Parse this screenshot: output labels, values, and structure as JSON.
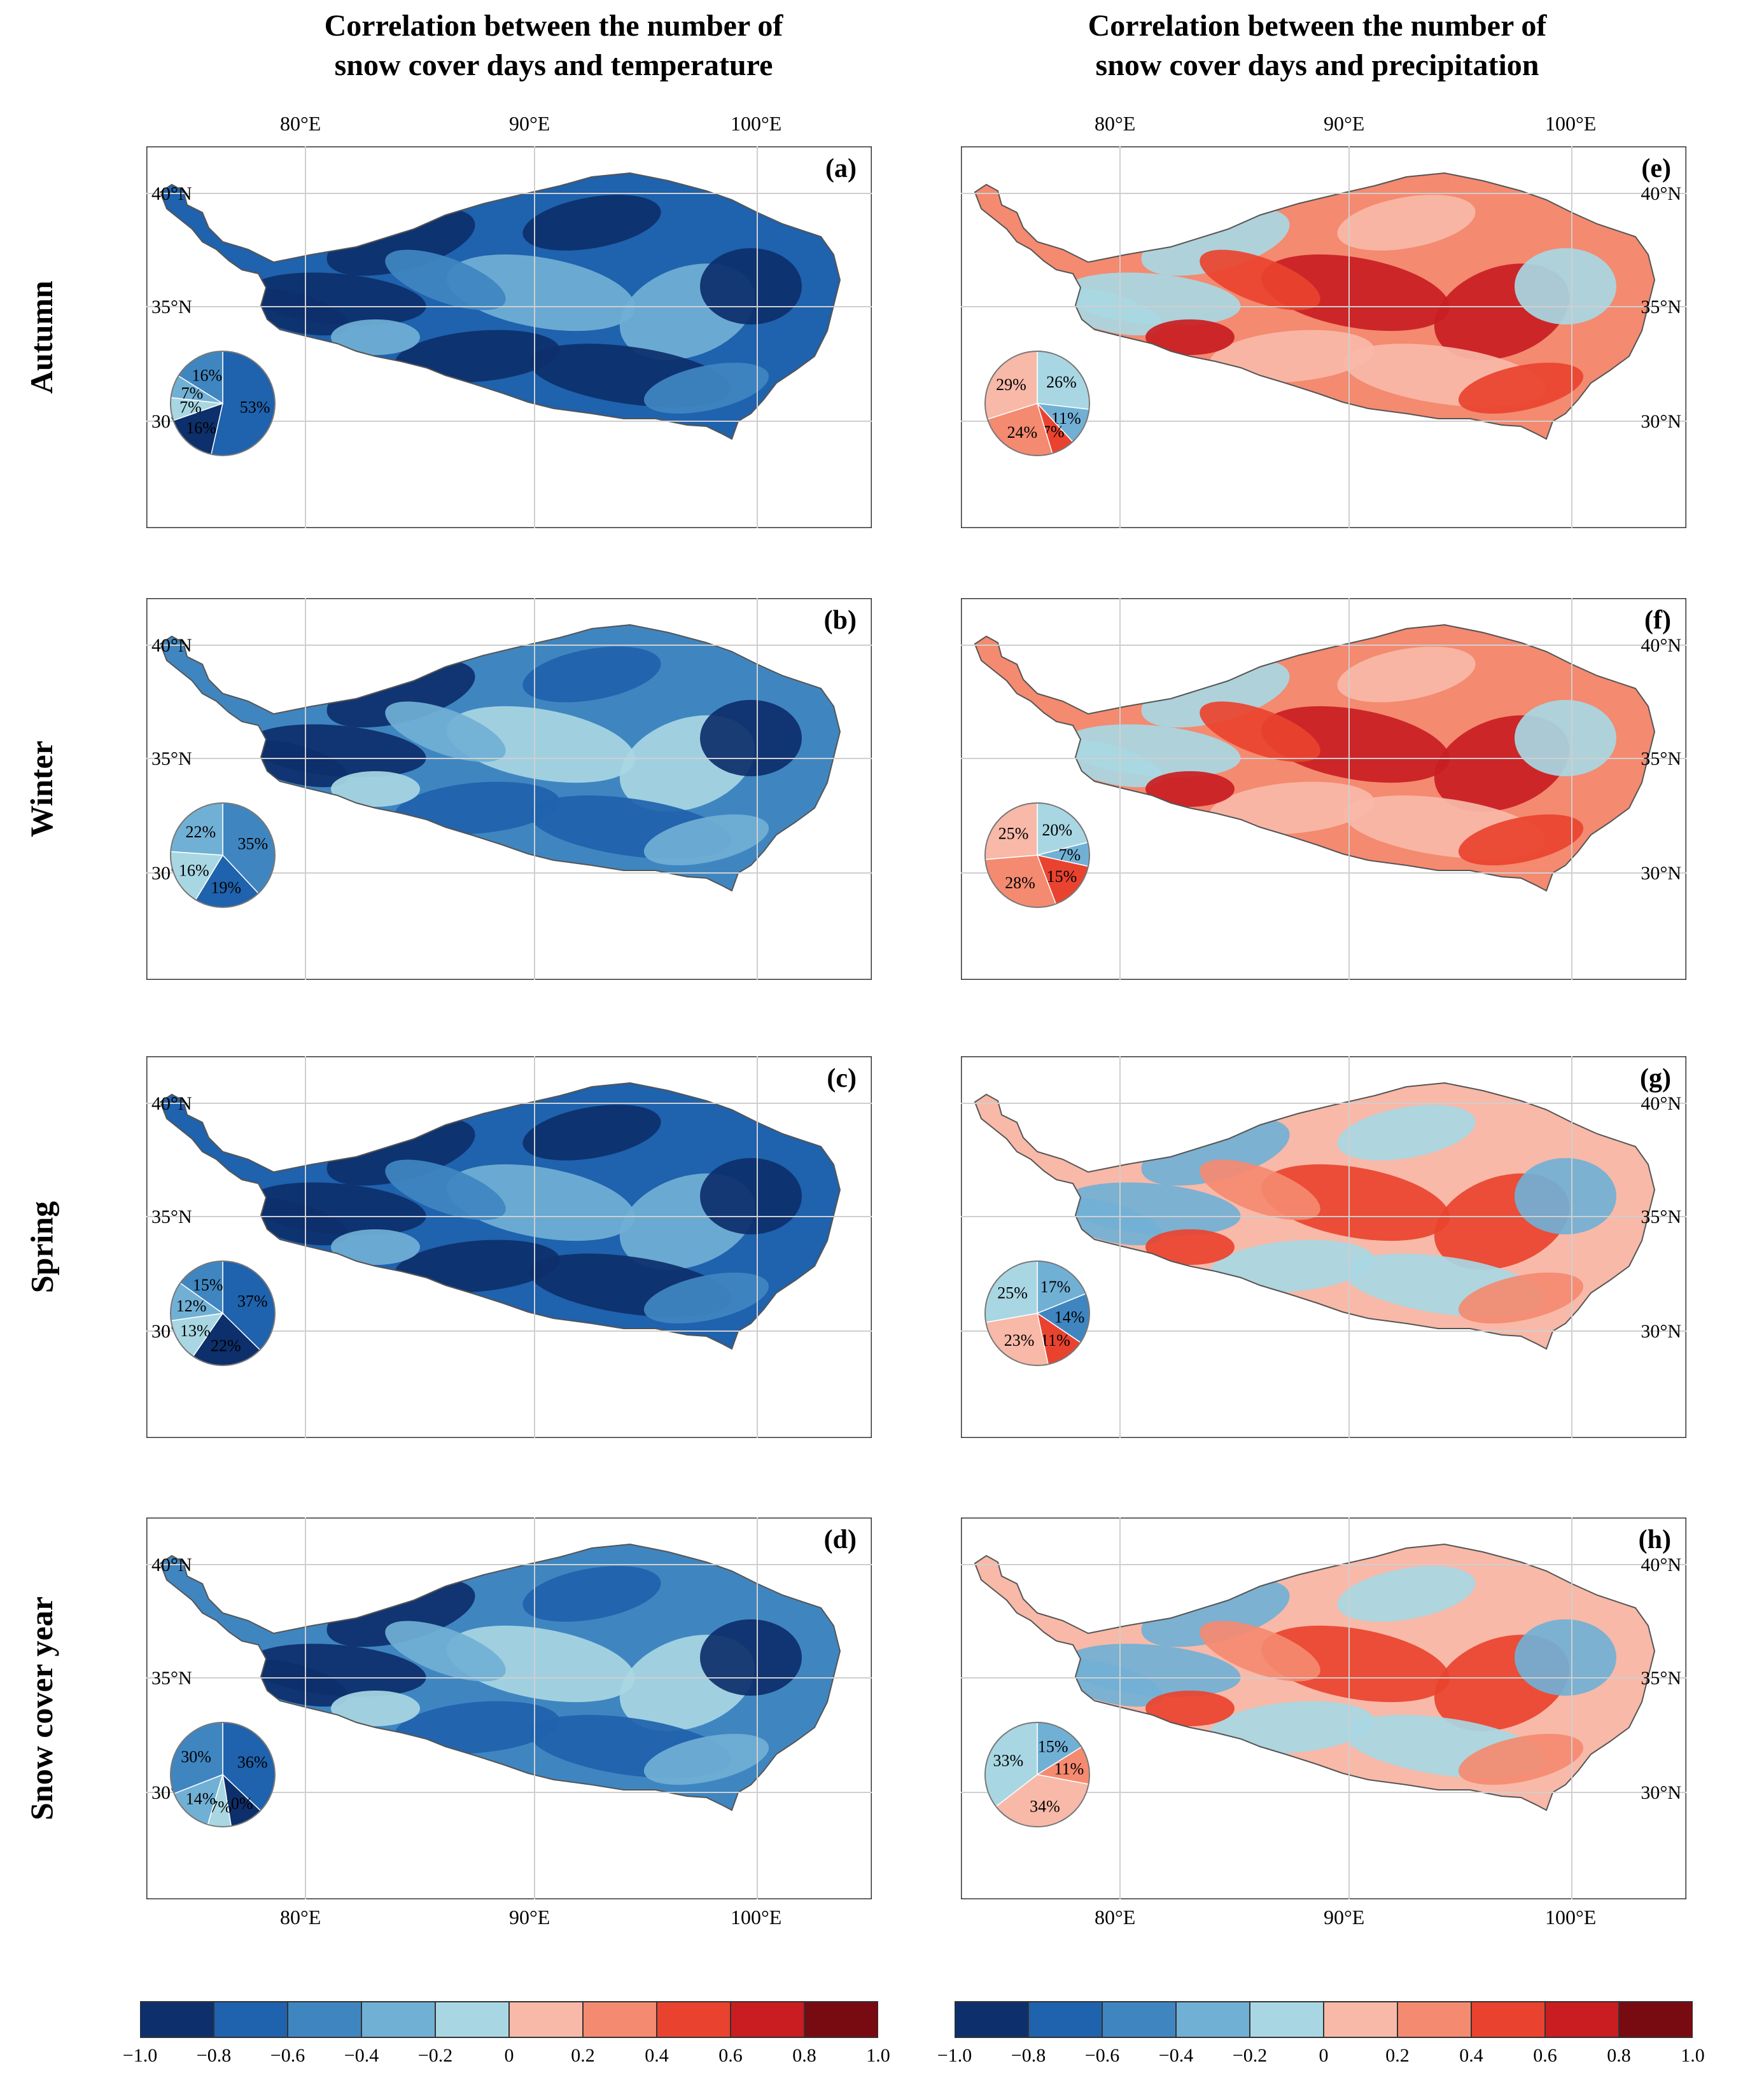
{
  "titles": {
    "left_line1": "Correlation between the number of",
    "left_line2": "snow cover days and temperature",
    "right_line1": "Correlation between the number of",
    "right_line2": "snow cover days and precipitation"
  },
  "rows": [
    "Autumn",
    "Winter",
    "Spring",
    "Snow cover year"
  ],
  "lon_labels": [
    "80°E",
    "90°E",
    "100°E"
  ],
  "lat_labels": [
    "40°N",
    "35°N",
    "30°N"
  ],
  "colors": {
    "scale": [
      "#0d2f6b",
      "#1f62ad",
      "#3f86c1",
      "#71b0d5",
      "#a8d7e3",
      "#f8b9a8",
      "#f48a70",
      "#e9432f",
      "#c91d22",
      "#780a12"
    ],
    "outline": "#555555",
    "grid": "#cfcfcf"
  },
  "colorbar_ticks": [
    "−1.0",
    "−0.8",
    "−0.6",
    "−0.4",
    "−0.2",
    "0",
    "0.2",
    "0.4",
    "0.6",
    "0.8",
    "1.0"
  ],
  "panels": [
    {
      "id": "a",
      "label": "(a)",
      "variable": "temperature",
      "row": "Autumn",
      "base_class": 1,
      "pie": [
        {
          "label": "53%",
          "value": 53,
          "class": 1
        },
        {
          "label": "16%",
          "value": 16,
          "class": 0
        },
        {
          "label": "7%",
          "value": 7,
          "class": 4
        },
        {
          "label": "7%",
          "value": 7,
          "class": 3
        },
        {
          "label": "16%",
          "value": 16,
          "class": 2
        }
      ]
    },
    {
      "id": "b",
      "label": "(b)",
      "variable": "temperature",
      "row": "Winter",
      "base_class": 2,
      "pie": [
        {
          "label": "35%",
          "value": 35,
          "class": 2
        },
        {
          "label": "19%",
          "value": 19,
          "class": 1
        },
        {
          "label": "16%",
          "value": 16,
          "class": 4
        },
        {
          "label": "22%",
          "value": 22,
          "class": 3
        }
      ]
    },
    {
      "id": "c",
      "label": "(c)",
      "variable": "temperature",
      "row": "Spring",
      "base_class": 1,
      "pie": [
        {
          "label": "37%",
          "value": 37,
          "class": 1
        },
        {
          "label": "22%",
          "value": 22,
          "class": 0
        },
        {
          "label": "13%",
          "value": 13,
          "class": 4
        },
        {
          "label": "12%",
          "value": 12,
          "class": 3
        },
        {
          "label": "15%",
          "value": 15,
          "class": 2
        }
      ]
    },
    {
      "id": "d",
      "label": "(d)",
      "variable": "temperature",
      "row": "Snow cover year",
      "base_class": 2,
      "pie": [
        {
          "label": "36%",
          "value": 36,
          "class": 1
        },
        {
          "label": "10%",
          "value": 10,
          "class": 0
        },
        {
          "label": "7%",
          "value": 7,
          "class": 4
        },
        {
          "label": "14%",
          "value": 14,
          "class": 3
        },
        {
          "label": "30%",
          "value": 30,
          "class": 2
        }
      ]
    },
    {
      "id": "e",
      "label": "(e)",
      "variable": "precipitation",
      "row": "Autumn",
      "base_class": 6,
      "pie": [
        {
          "label": "26%",
          "value": 26,
          "class": 4
        },
        {
          "label": "11%",
          "value": 11,
          "class": 3
        },
        {
          "label": "7%",
          "value": 7,
          "class": 7
        },
        {
          "label": "24%",
          "value": 24,
          "class": 6
        },
        {
          "label": "29%",
          "value": 29,
          "class": 5
        }
      ]
    },
    {
      "id": "f",
      "label": "(f)",
      "variable": "precipitation",
      "row": "Winter",
      "base_class": 6,
      "pie": [
        {
          "label": "20%",
          "value": 20,
          "class": 4
        },
        {
          "label": "7%",
          "value": 7,
          "class": 3
        },
        {
          "label": "15%",
          "value": 15,
          "class": 7
        },
        {
          "label": "28%",
          "value": 28,
          "class": 6
        },
        {
          "label": "25%",
          "value": 25,
          "class": 5
        }
      ]
    },
    {
      "id": "g",
      "label": "(g)",
      "variable": "precipitation",
      "row": "Spring",
      "base_class": 5,
      "pie": [
        {
          "label": "17%",
          "value": 17,
          "class": 3
        },
        {
          "label": "14%",
          "value": 14,
          "class": 2
        },
        {
          "label": "11%",
          "value": 11,
          "class": 7
        },
        {
          "label": "23%",
          "value": 23,
          "class": 5
        },
        {
          "label": "25%",
          "value": 25,
          "class": 4
        }
      ]
    },
    {
      "id": "h",
      "label": "(h)",
      "variable": "precipitation",
      "row": "Snow cover year",
      "base_class": 5,
      "pie": [
        {
          "label": "15%",
          "value": 15,
          "class": 3
        },
        {
          "label": "11%",
          "value": 11,
          "class": 6
        },
        {
          "label": "34%",
          "value": 34,
          "class": 5
        },
        {
          "label": "33%",
          "value": 33,
          "class": 4
        }
      ]
    }
  ]
}
